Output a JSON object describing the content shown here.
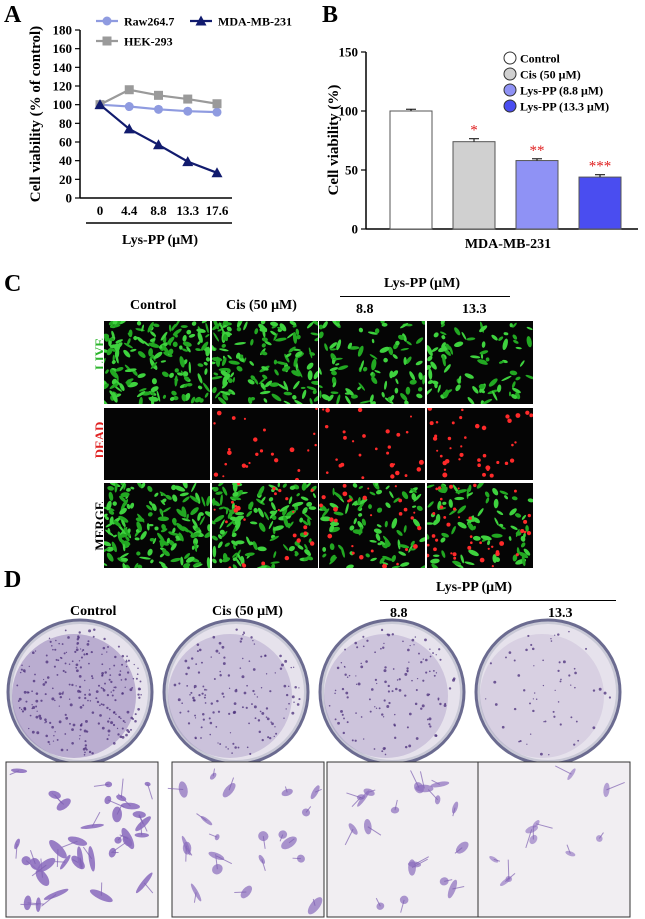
{
  "panels": {
    "a": "A",
    "b": "B",
    "c": "C",
    "d": "D"
  },
  "chart_data": [
    {
      "type": "line",
      "ylabel": "Cell viability (% of control)",
      "xlabel": "Lys-PP (μM)",
      "categories": [
        "0",
        "4.4",
        "8.8",
        "13.3",
        "17.6"
      ],
      "ylim": [
        0,
        180
      ],
      "yticks": [
        0,
        20,
        40,
        60,
        80,
        100,
        120,
        140,
        160,
        180
      ],
      "legend_placement": "top",
      "series": [
        {
          "name": "Raw264.7",
          "values": [
            100,
            98,
            95,
            93,
            92
          ],
          "color": "#8f9be0",
          "marker": "circle"
        },
        {
          "name": "HEK-293",
          "values": [
            100,
            116,
            110,
            106,
            101
          ],
          "color": "#9a9a9a",
          "marker": "square"
        },
        {
          "name": "MDA-MB-231",
          "values": [
            100,
            74,
            57,
            39,
            27
          ],
          "color": "#111b6e",
          "marker": "triangle"
        }
      ]
    },
    {
      "type": "bar",
      "ylabel": "Cell viability (%)",
      "xlabel": "MDA-MB-231",
      "ylim": [
        0,
        150
      ],
      "yticks": [
        0,
        50,
        100,
        150
      ],
      "legend_placement": "top-right",
      "series": [
        {
          "name": "Control",
          "value": 100,
          "error": 1.5,
          "color": "#ffffff",
          "sig": ""
        },
        {
          "name": "Cis (50 μM)",
          "value": 74,
          "error": 2.5,
          "color": "#d0d0d0",
          "sig": "*"
        },
        {
          "name": "Lys-PP (8.8 μM)",
          "value": 58,
          "error": 1.5,
          "color": "#8f92f5",
          "sig": "**"
        },
        {
          "name": "Lys-PP (13.3 μM)",
          "value": 44,
          "error": 2.0,
          "color": "#4a4df0",
          "sig": "***"
        }
      ]
    }
  ],
  "panel_c": {
    "columns": [
      "Control",
      "Cis (50 μM)",
      "8.8",
      "13.3"
    ],
    "group_label": "Lys-PP (μM)",
    "rows": [
      {
        "label": "LIVE",
        "color": "#2bb52b"
      },
      {
        "label": "DEAD",
        "color": "#e02020"
      },
      {
        "label": "MERGE",
        "color": "#000000"
      }
    ]
  },
  "panel_d": {
    "columns": [
      "Control",
      "Cis (50 μM)",
      "8.8",
      "13.3"
    ],
    "group_label": "Lys-PP (μM)",
    "density": [
      0.9,
      0.45,
      0.4,
      0.12
    ]
  }
}
